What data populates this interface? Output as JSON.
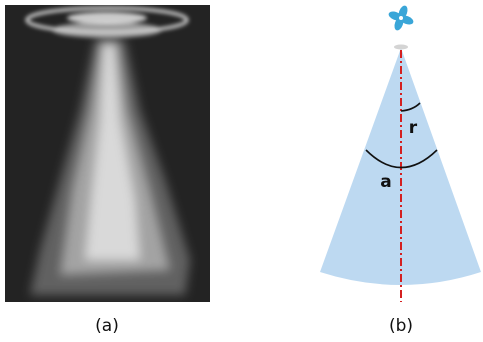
{
  "panel_a": {
    "caption": "(a)"
  },
  "panel_b": {
    "caption": "(b)",
    "inner_angle_label": "r",
    "outer_angle_label": "a"
  }
}
